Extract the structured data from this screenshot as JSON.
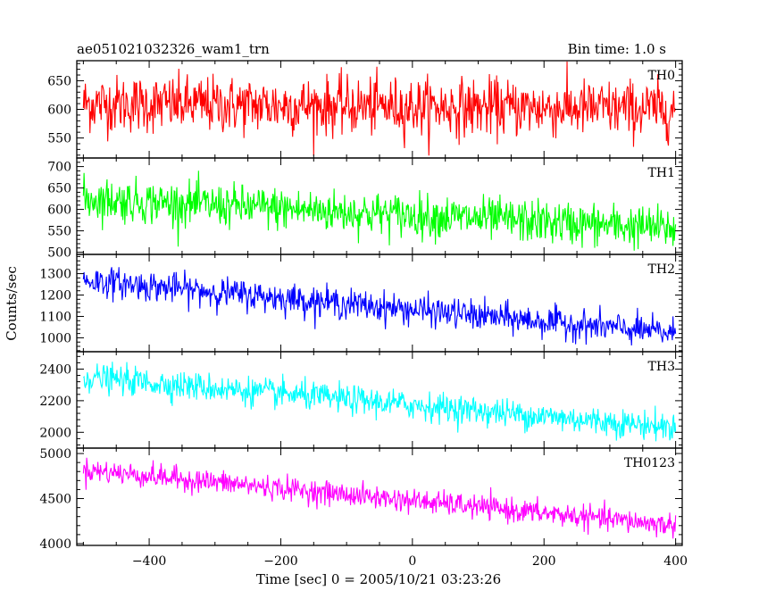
{
  "header": {
    "title": "ae051021032326_wam1_trn",
    "bin_time": "Bin time: 1.0 s"
  },
  "chart_data": {
    "type": "line",
    "xlabel": "Time [sec] 0 = 2005/10/21 03:23:26",
    "ylabel": "Counts/sec",
    "xlim": [
      -510,
      410
    ],
    "xticks": [
      -400,
      -200,
      0,
      200,
      400
    ],
    "x_start": -500,
    "x_end": 400,
    "step": 1.0,
    "panels": [
      {
        "name": "TH0",
        "color": "#ff0000",
        "ylim": [
          515,
          685
        ],
        "yticks": [
          550,
          600,
          650
        ],
        "trend_start": 610,
        "trend_end": 600,
        "noise_sd": 25
      },
      {
        "name": "TH1",
        "color": "#00ff00",
        "ylim": [
          495,
          720
        ],
        "yticks": [
          500,
          550,
          600,
          650,
          700
        ],
        "trend_start": 625,
        "trend_end": 555,
        "noise_sd": 25
      },
      {
        "name": "TH2",
        "color": "#0000ff",
        "ylim": [
          935,
          1390
        ],
        "yticks": [
          1000,
          1100,
          1200,
          1300
        ],
        "trend_start": 1270,
        "trend_end": 1020,
        "noise_sd": 35
      },
      {
        "name": "TH3",
        "color": "#00ffff",
        "ylim": [
          1900,
          2510
        ],
        "yticks": [
          2000,
          2200,
          2400
        ],
        "trend_start": 2350,
        "trend_end": 2030,
        "noise_sd": 45
      },
      {
        "name": "TH0123",
        "color": "#ff00ff",
        "ylim": [
          3980,
          5060
        ],
        "yticks": [
          4000,
          4500,
          5000
        ],
        "trend_start": 4820,
        "trend_end": 4200,
        "noise_sd": 65
      }
    ]
  }
}
